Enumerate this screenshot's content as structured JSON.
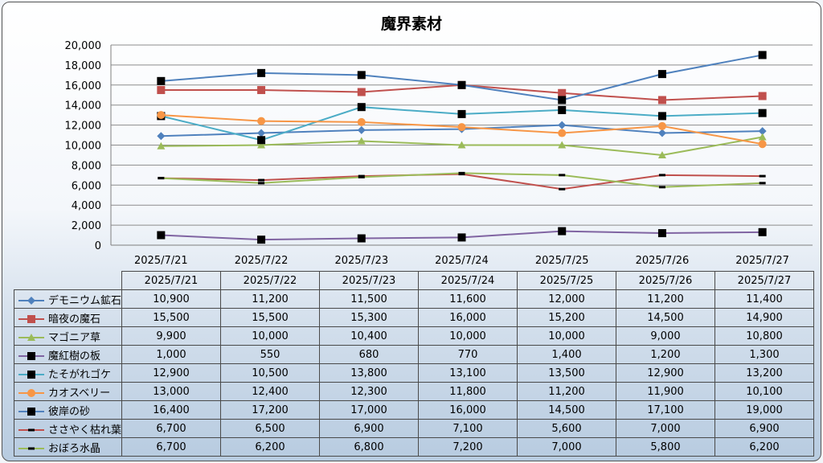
{
  "chart_data": {
    "type": "line",
    "title": "魔界素材",
    "categories": [
      "2025/7/21",
      "2025/7/22",
      "2025/7/23",
      "2025/7/24",
      "2025/7/25",
      "2025/7/26",
      "2025/7/27"
    ],
    "ylim": [
      0,
      20000
    ],
    "yticks": [
      0,
      2000,
      4000,
      6000,
      8000,
      10000,
      12000,
      14000,
      16000,
      18000,
      20000
    ],
    "ytick_labels": [
      "0",
      "2,000",
      "4,000",
      "6,000",
      "8,000",
      "10,000",
      "12,000",
      "14,000",
      "16,000",
      "18,000",
      "20,000"
    ],
    "grid": true,
    "legend": "data-table-below",
    "series": [
      {
        "name": "デモニウム鉱石",
        "color": "#4f81bd",
        "marker": "diamond",
        "values": [
          10900,
          11200,
          11500,
          11600,
          12000,
          11200,
          11400
        ],
        "labels": [
          "10,900",
          "11,200",
          "11,500",
          "11,600",
          "12,000",
          "11,200",
          "11,400"
        ]
      },
      {
        "name": "暗夜の魔石",
        "color": "#c0504d",
        "marker": "square",
        "values": [
          15500,
          15500,
          15300,
          16000,
          15200,
          14500,
          14900
        ],
        "labels": [
          "15,500",
          "15,500",
          "15,300",
          "16,000",
          "15,200",
          "14,500",
          "14,900"
        ]
      },
      {
        "name": "マゴニア草",
        "color": "#9bbb59",
        "marker": "triangle",
        "values": [
          9900,
          10000,
          10400,
          10000,
          10000,
          9000,
          10800
        ],
        "labels": [
          "9,900",
          "10,000",
          "10,400",
          "10,000",
          "10,000",
          "9,000",
          "10,800"
        ]
      },
      {
        "name": "魔紅樹の板",
        "color": "#8064a2",
        "marker": "blacksquare",
        "values": [
          1000,
          550,
          680,
          770,
          1400,
          1200,
          1300
        ],
        "labels": [
          "1,000",
          "550",
          "680",
          "770",
          "1,400",
          "1,200",
          "1,300"
        ]
      },
      {
        "name": "たそがれゴケ",
        "color": "#4bacc6",
        "marker": "blacksquare",
        "values": [
          12900,
          10500,
          13800,
          13100,
          13500,
          12900,
          13200
        ],
        "labels": [
          "12,900",
          "10,500",
          "13,800",
          "13,100",
          "13,500",
          "12,900",
          "13,200"
        ]
      },
      {
        "name": "カオスベリー",
        "color": "#f79646",
        "marker": "circle",
        "values": [
          13000,
          12400,
          12300,
          11800,
          11200,
          11900,
          10100
        ],
        "labels": [
          "13,000",
          "12,400",
          "12,300",
          "11,800",
          "11,200",
          "11,900",
          "10,100"
        ]
      },
      {
        "name": "彼岸の砂",
        "color": "#4f81bd",
        "marker": "blacksquare",
        "values": [
          16400,
          17200,
          17000,
          16000,
          14500,
          17100,
          19000
        ],
        "labels": [
          "16,400",
          "17,200",
          "17,000",
          "16,000",
          "14,500",
          "17,100",
          "19,000"
        ]
      },
      {
        "name": "ささやく枯れ葉",
        "color": "#c0504d",
        "marker": "dash",
        "values": [
          6700,
          6500,
          6900,
          7100,
          5600,
          7000,
          6900
        ],
        "labels": [
          "6,700",
          "6,500",
          "6,900",
          "7,100",
          "5,600",
          "7,000",
          "6,900"
        ]
      },
      {
        "name": "おぼろ水晶",
        "color": "#9bbb59",
        "marker": "dash",
        "values": [
          6700,
          6200,
          6800,
          7200,
          7000,
          5800,
          6200
        ],
        "labels": [
          "6,700",
          "6,200",
          "6,800",
          "7,200",
          "7,000",
          "5,800",
          "6,200"
        ]
      }
    ]
  }
}
